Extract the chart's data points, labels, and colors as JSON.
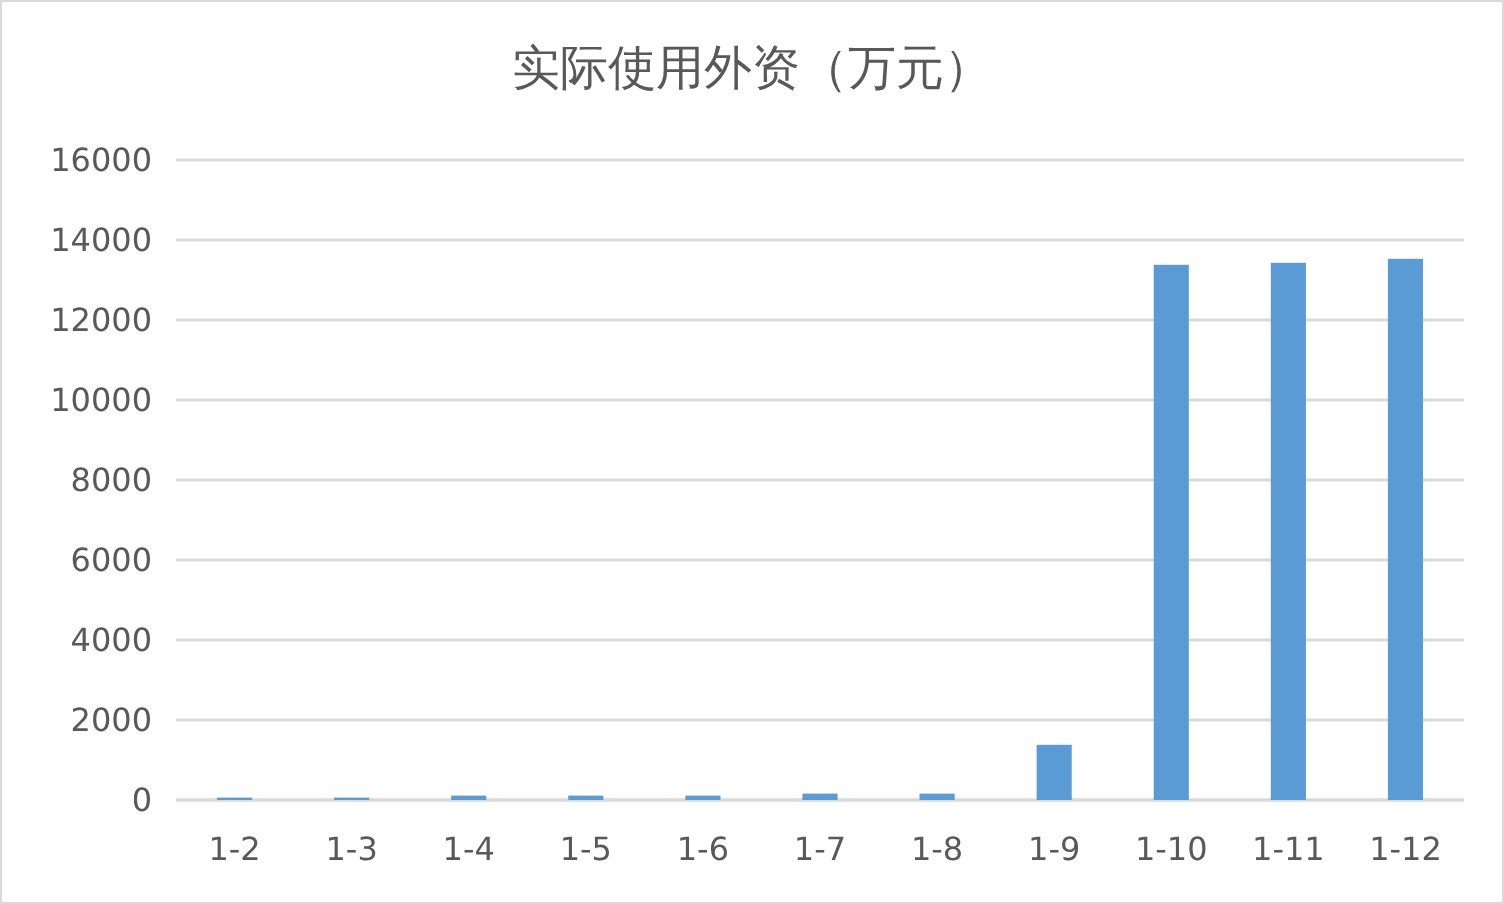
{
  "chart_data": {
    "type": "bar",
    "title": "实际使用外资（万元）",
    "categories": [
      "1-2",
      "1-3",
      "1-4",
      "1-5",
      "1-6",
      "1-7",
      "1-8",
      "1-9",
      "1-10",
      "1-11",
      "1-12"
    ],
    "values": [
      60,
      60,
      110,
      110,
      110,
      160,
      160,
      1380,
      13380,
      13430,
      13530
    ],
    "color": "#5b9bd5",
    "ylim": [
      0,
      16000
    ],
    "yticks": [
      0,
      2000,
      4000,
      6000,
      8000,
      10000,
      12000,
      14000,
      16000
    ],
    "grid": true
  }
}
